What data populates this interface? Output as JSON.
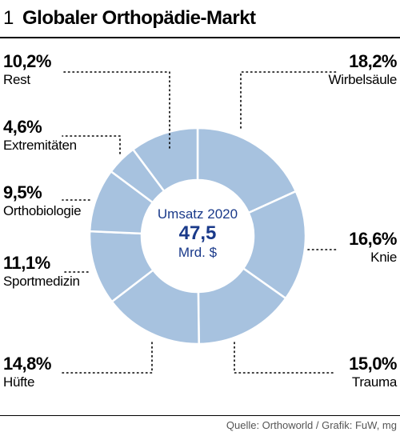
{
  "header": {
    "number": "1",
    "title": "Globaler Orthopädie-Markt"
  },
  "center": {
    "line1": "Umsatz 2020",
    "line2": "47,5",
    "line3": "Mrd. $"
  },
  "source": "Quelle: Orthoworld / Grafik: FuW, mg",
  "colors": {
    "segment": "#a7c2df",
    "segment_stroke": "#ffffff",
    "accent": "#1a3a8a"
  },
  "chart_data": {
    "type": "pie",
    "variant": "donut",
    "start": "12 o'clock, clockwise",
    "series": [
      {
        "label": "Wirbelsäule",
        "value": 18.2,
        "display": "18,2%"
      },
      {
        "label": "Knie",
        "value": 16.6,
        "display": "16,6%"
      },
      {
        "label": "Trauma",
        "value": 15.0,
        "display": "15,0%"
      },
      {
        "label": "Hüfte",
        "value": 14.8,
        "display": "14,8%"
      },
      {
        "label": "Sportmedizin",
        "value": 11.1,
        "display": "11,1%"
      },
      {
        "label": "Orthobiologie",
        "value": 9.5,
        "display": "9,5%"
      },
      {
        "label": "Extremitäten",
        "value": 4.6,
        "display": "4,6%"
      },
      {
        "label": "Rest",
        "value": 10.2,
        "display": "10,2%"
      }
    ]
  }
}
